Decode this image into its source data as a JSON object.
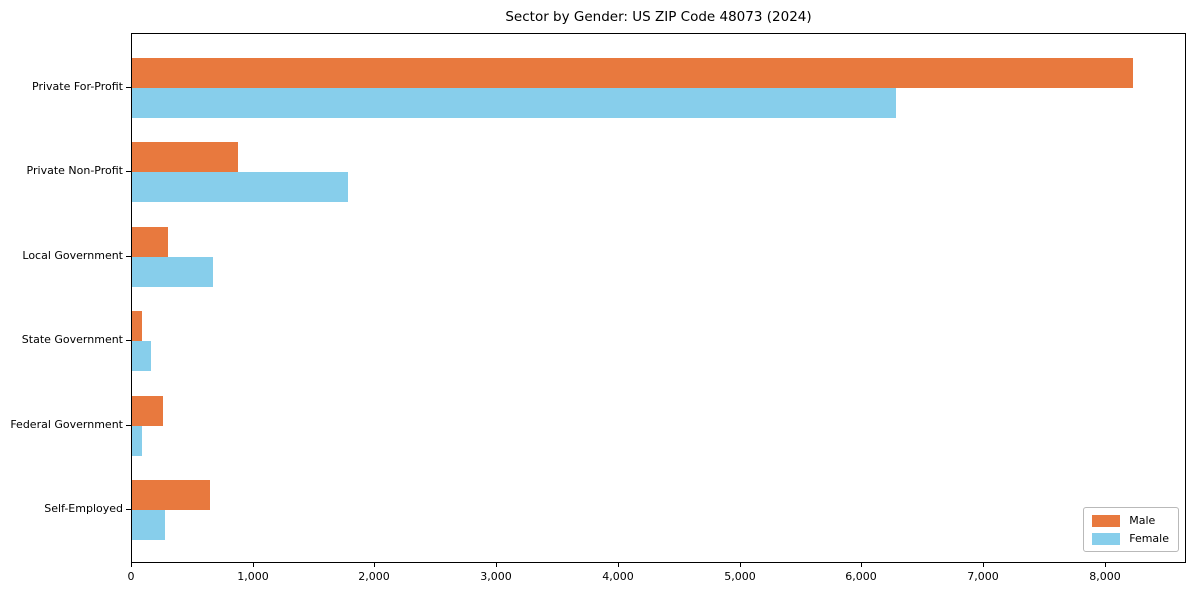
{
  "chart_data": {
    "type": "bar",
    "orientation": "horizontal",
    "title": "Sector by Gender: US ZIP Code 48073 (2024)",
    "xlabel": "",
    "ylabel": "",
    "categories": [
      "Private For-Profit",
      "Private Non-Profit",
      "Local Government",
      "State Government",
      "Federal Government",
      "Self-Employed"
    ],
    "series": [
      {
        "name": "Male",
        "color": "#e8793e",
        "values": [
          8240,
          870,
          300,
          80,
          255,
          645
        ]
      },
      {
        "name": "Female",
        "color": "#87ceeb",
        "values": [
          6290,
          1775,
          670,
          155,
          80,
          275
        ]
      }
    ],
    "xlim": [
      0,
      8666
    ],
    "xticks": [
      0,
      1000,
      2000,
      3000,
      4000,
      5000,
      6000,
      7000,
      8000
    ],
    "xtick_labels": [
      "0",
      "1,000",
      "2,000",
      "3,000",
      "4,000",
      "5,000",
      "6,000",
      "7,000",
      "8,000"
    ],
    "grid": false,
    "legend": {
      "position": "lower right",
      "entries": [
        "Male",
        "Female"
      ]
    },
    "colors": {
      "background": "#ffffff",
      "spine": "#000000",
      "male": "#e8793e",
      "female": "#87ceeb"
    }
  }
}
